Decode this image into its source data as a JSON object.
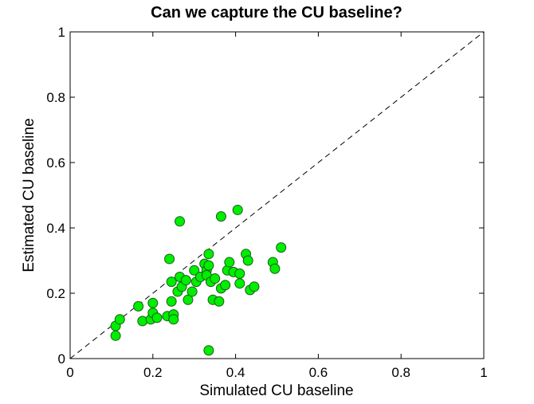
{
  "chart_data": {
    "type": "scatter",
    "title": "Can we capture the CU baseline?",
    "xlabel": "Simulated CU baseline",
    "ylabel": "Estimated CU baseline",
    "xlim": [
      0,
      1
    ],
    "ylim": [
      0,
      1
    ],
    "xticks": [
      0,
      0.2,
      0.4,
      0.6,
      0.8,
      1
    ],
    "yticks": [
      0,
      0.2,
      0.4,
      0.6,
      0.8,
      1
    ],
    "xtick_labels": [
      "0",
      "0.2",
      "0.4",
      "0.6",
      "0.8",
      "1"
    ],
    "ytick_labels": [
      "0",
      "0.2",
      "0.4",
      "0.6",
      "0.8",
      "1"
    ],
    "grid": false,
    "reference_line": {
      "style": "dashed",
      "from": [
        0,
        0
      ],
      "to": [
        1,
        1
      ],
      "color": "#000000"
    },
    "marker_color": "#00ee00",
    "marker_edge_color": "#1a5a1a",
    "series": [
      {
        "points": [
          [
            0.11,
            0.1
          ],
          [
            0.11,
            0.07
          ],
          [
            0.12,
            0.12
          ],
          [
            0.165,
            0.16
          ],
          [
            0.175,
            0.115
          ],
          [
            0.195,
            0.12
          ],
          [
            0.2,
            0.14
          ],
          [
            0.2,
            0.17
          ],
          [
            0.21,
            0.125
          ],
          [
            0.235,
            0.13
          ],
          [
            0.24,
            0.305
          ],
          [
            0.245,
            0.175
          ],
          [
            0.245,
            0.235
          ],
          [
            0.25,
            0.135
          ],
          [
            0.25,
            0.12
          ],
          [
            0.26,
            0.205
          ],
          [
            0.265,
            0.25
          ],
          [
            0.265,
            0.42
          ],
          [
            0.27,
            0.22
          ],
          [
            0.28,
            0.24
          ],
          [
            0.285,
            0.18
          ],
          [
            0.295,
            0.205
          ],
          [
            0.3,
            0.27
          ],
          [
            0.305,
            0.235
          ],
          [
            0.315,
            0.25
          ],
          [
            0.325,
            0.29
          ],
          [
            0.33,
            0.27
          ],
          [
            0.33,
            0.255
          ],
          [
            0.335,
            0.285
          ],
          [
            0.335,
            0.32
          ],
          [
            0.335,
            0.025
          ],
          [
            0.34,
            0.235
          ],
          [
            0.345,
            0.18
          ],
          [
            0.35,
            0.245
          ],
          [
            0.36,
            0.175
          ],
          [
            0.365,
            0.435
          ],
          [
            0.365,
            0.215
          ],
          [
            0.375,
            0.225
          ],
          [
            0.38,
            0.27
          ],
          [
            0.385,
            0.295
          ],
          [
            0.395,
            0.265
          ],
          [
            0.405,
            0.455
          ],
          [
            0.41,
            0.26
          ],
          [
            0.41,
            0.23
          ],
          [
            0.425,
            0.32
          ],
          [
            0.43,
            0.3
          ],
          [
            0.435,
            0.21
          ],
          [
            0.445,
            0.22
          ],
          [
            0.49,
            0.295
          ],
          [
            0.495,
            0.275
          ],
          [
            0.51,
            0.34
          ]
        ]
      }
    ]
  }
}
